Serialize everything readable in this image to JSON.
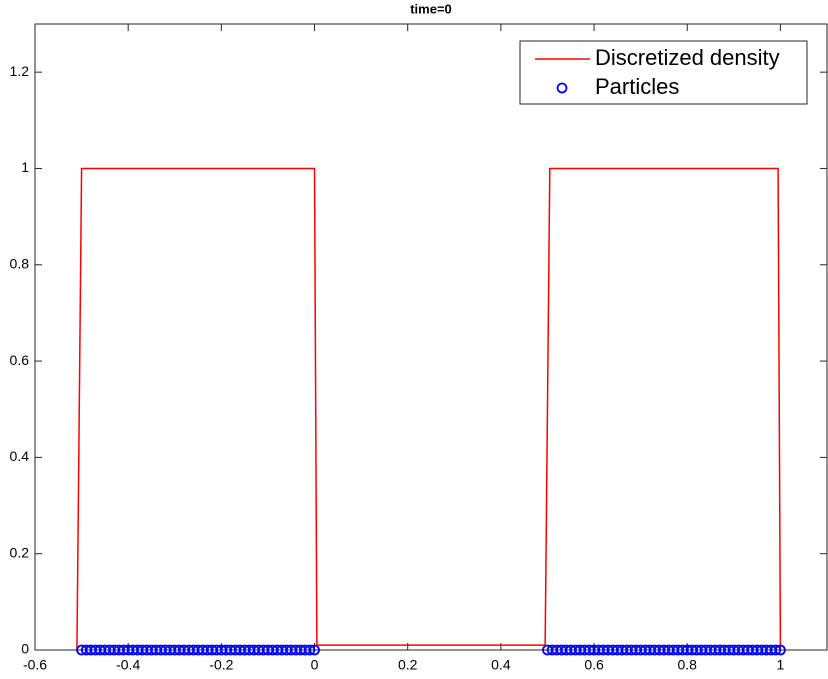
{
  "chart_data": {
    "type": "line",
    "title": "time=0",
    "xlim": [
      -0.6,
      1.1
    ],
    "ylim": [
      0,
      1.3
    ],
    "xticks": [
      -0.6,
      -0.4,
      -0.2,
      0,
      0.2,
      0.4,
      0.6,
      0.8,
      1
    ],
    "yticks": [
      0,
      0.2,
      0.4,
      0.6,
      0.8,
      1,
      1.2
    ],
    "grid": false,
    "legend": "northeast",
    "series": [
      {
        "name": "Discretized density",
        "type": "line",
        "color": "#ff0000",
        "x": [
          -0.51,
          -0.5,
          0,
          0.005,
          0.495,
          0.505,
          0.995,
          1.0
        ],
        "values": [
          0,
          1,
          1,
          0.01,
          0.01,
          1,
          1,
          0
        ]
      },
      {
        "name": "Particles",
        "type": "scatter",
        "color": "#0000ff",
        "x": [
          -0.5,
          -0.49,
          -0.48,
          -0.47,
          -0.46,
          -0.45,
          -0.44,
          -0.43,
          -0.42,
          -0.41,
          -0.4,
          -0.39,
          -0.38,
          -0.37,
          -0.36,
          -0.35,
          -0.34,
          -0.33,
          -0.32,
          -0.31,
          -0.3,
          -0.29,
          -0.28,
          -0.27,
          -0.26,
          -0.25,
          -0.24,
          -0.23,
          -0.22,
          -0.21,
          -0.2,
          -0.19,
          -0.18,
          -0.17,
          -0.16,
          -0.15,
          -0.14,
          -0.13,
          -0.12,
          -0.11,
          -0.1,
          -0.09,
          -0.08,
          -0.07,
          -0.06,
          -0.05,
          -0.04,
          -0.03,
          -0.02,
          -0.01,
          0,
          0.5,
          0.51,
          0.52,
          0.53,
          0.54,
          0.55,
          0.56,
          0.57,
          0.58,
          0.59,
          0.6,
          0.61,
          0.62,
          0.63,
          0.64,
          0.65,
          0.66,
          0.67,
          0.68,
          0.69,
          0.7,
          0.71,
          0.72,
          0.73,
          0.74,
          0.75,
          0.76,
          0.77,
          0.78,
          0.79,
          0.8,
          0.81,
          0.82,
          0.83,
          0.84,
          0.85,
          0.86,
          0.87,
          0.88,
          0.89,
          0.9,
          0.91,
          0.92,
          0.93,
          0.94,
          0.95,
          0.96,
          0.97,
          0.98,
          0.99,
          1
        ],
        "values": [
          0,
          0,
          0,
          0,
          0,
          0,
          0,
          0,
          0,
          0,
          0,
          0,
          0,
          0,
          0,
          0,
          0,
          0,
          0,
          0,
          0,
          0,
          0,
          0,
          0,
          0,
          0,
          0,
          0,
          0,
          0,
          0,
          0,
          0,
          0,
          0,
          0,
          0,
          0,
          0,
          0,
          0,
          0,
          0,
          0,
          0,
          0,
          0,
          0,
          0,
          0,
          0,
          0,
          0,
          0,
          0,
          0,
          0,
          0,
          0,
          0,
          0,
          0,
          0,
          0,
          0,
          0,
          0,
          0,
          0,
          0,
          0,
          0,
          0,
          0,
          0,
          0,
          0,
          0,
          0,
          0,
          0,
          0,
          0,
          0,
          0,
          0,
          0,
          0,
          0,
          0,
          0,
          0,
          0,
          0,
          0,
          0,
          0,
          0,
          0,
          0,
          0
        ]
      }
    ]
  }
}
